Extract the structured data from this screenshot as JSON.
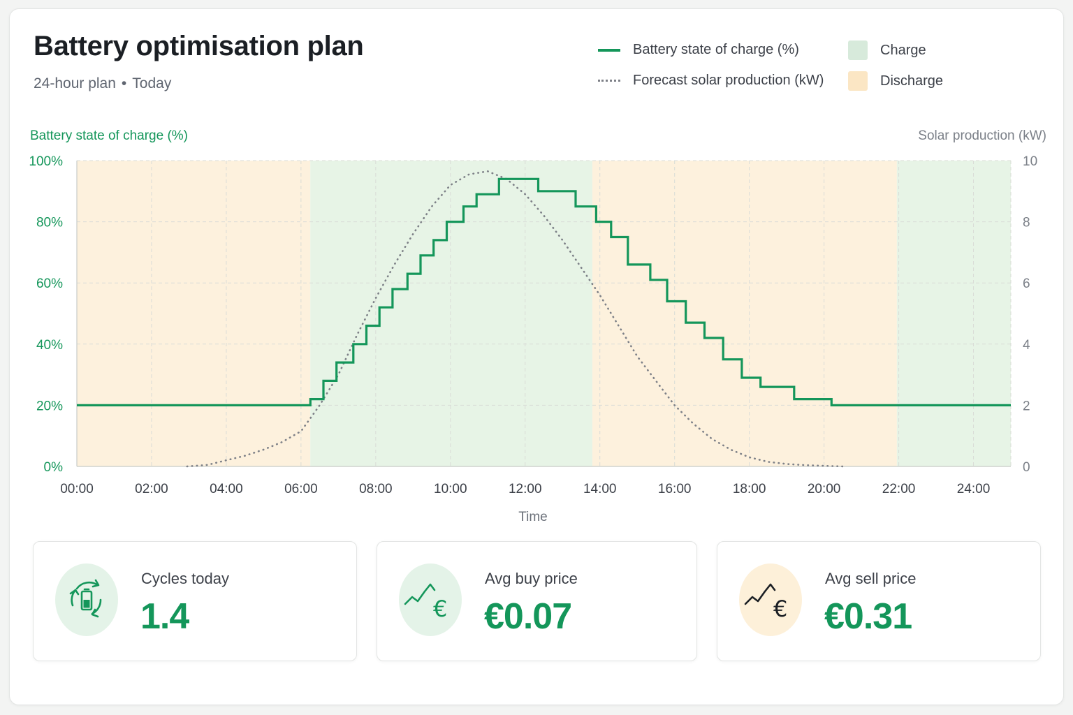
{
  "header": {
    "title": "Battery optimisation plan",
    "subtitle_period": "24-hour plan",
    "subtitle_day": "Today"
  },
  "legend": {
    "soc": "Battery state of charge (%)",
    "solar": "Forecast solar production (kW)",
    "charge": "Charge",
    "discharge": "Discharge"
  },
  "colors": {
    "accent": "#14965a",
    "solar_line": "#7d8087",
    "charge_fill": "#e7f4e6",
    "discharge_fill": "#fdf1dd",
    "charge_swatch": "#d7eadb",
    "discharge_swatch": "#fbe6c4"
  },
  "chart_data": {
    "type": "line",
    "ylabel_left": "Battery state of charge (%)",
    "ylabel_right": "Solar production (kW)",
    "xlabel": "Time",
    "x_ticks": [
      "00:00",
      "02:00",
      "04:00",
      "06:00",
      "08:00",
      "10:00",
      "12:00",
      "14:00",
      "16:00",
      "18:00",
      "20:00",
      "22:00",
      "24:00"
    ],
    "y_left_ticks": [
      "0%",
      "20%",
      "40%",
      "60%",
      "80%",
      "100%"
    ],
    "y_right_ticks": [
      "0",
      "2",
      "4",
      "6",
      "8",
      "10"
    ],
    "xlim": [
      0,
      25
    ],
    "ylim_left": [
      0,
      100
    ],
    "ylim_right": [
      0,
      10
    ],
    "grid": true,
    "legend_position": "top-right",
    "bands": [
      {
        "type": "discharge",
        "start": 0,
        "end": 6.25
      },
      {
        "type": "charge",
        "start": 6.25,
        "end": 13.8
      },
      {
        "type": "discharge",
        "start": 13.8,
        "end": 21.95
      },
      {
        "type": "charge",
        "start": 21.95,
        "end": 25
      }
    ],
    "series": [
      {
        "name": "Battery state of charge (%)",
        "axis": "left",
        "style": "step",
        "points": [
          [
            0,
            20
          ],
          [
            6.25,
            22
          ],
          [
            6.6,
            28
          ],
          [
            6.95,
            34
          ],
          [
            7.4,
            40
          ],
          [
            7.75,
            46
          ],
          [
            8.1,
            52
          ],
          [
            8.45,
            58
          ],
          [
            8.85,
            63
          ],
          [
            9.2,
            69
          ],
          [
            9.55,
            74
          ],
          [
            9.9,
            80
          ],
          [
            10.35,
            85
          ],
          [
            10.7,
            89
          ],
          [
            11.3,
            94
          ],
          [
            12.35,
            90
          ],
          [
            13.35,
            85
          ],
          [
            13.9,
            80
          ],
          [
            14.3,
            75
          ],
          [
            14.75,
            66
          ],
          [
            15.35,
            61
          ],
          [
            15.8,
            54
          ],
          [
            16.3,
            47
          ],
          [
            16.8,
            42
          ],
          [
            17.3,
            35
          ],
          [
            17.8,
            29
          ],
          [
            18.3,
            26
          ],
          [
            19.2,
            22
          ],
          [
            20.2,
            20
          ],
          [
            25,
            20
          ]
        ]
      },
      {
        "name": "Forecast solar production (kW)",
        "axis": "right",
        "style": "dotted",
        "points": [
          [
            2.95,
            0
          ],
          [
            3.5,
            0.05
          ],
          [
            4,
            0.2
          ],
          [
            4.5,
            0.35
          ],
          [
            5,
            0.55
          ],
          [
            5.5,
            0.8
          ],
          [
            6,
            1.15
          ],
          [
            6.5,
            2.0
          ],
          [
            7,
            3.0
          ],
          [
            7.5,
            4.3
          ],
          [
            8,
            5.5
          ],
          [
            8.5,
            6.6
          ],
          [
            9,
            7.6
          ],
          [
            9.5,
            8.5
          ],
          [
            10,
            9.2
          ],
          [
            10.5,
            9.55
          ],
          [
            11,
            9.65
          ],
          [
            11.5,
            9.4
          ],
          [
            12,
            8.9
          ],
          [
            12.5,
            8.2
          ],
          [
            13,
            7.4
          ],
          [
            13.5,
            6.5
          ],
          [
            14,
            5.6
          ],
          [
            14.5,
            4.6
          ],
          [
            15,
            3.6
          ],
          [
            15.5,
            2.8
          ],
          [
            16,
            2.0
          ],
          [
            16.5,
            1.4
          ],
          [
            17,
            0.9
          ],
          [
            17.5,
            0.55
          ],
          [
            18,
            0.3
          ],
          [
            18.5,
            0.15
          ],
          [
            19,
            0.08
          ],
          [
            19.5,
            0.04
          ],
          [
            20,
            0.02
          ],
          [
            20.5,
            0
          ]
        ]
      }
    ]
  },
  "kpis": [
    {
      "label": "Cycles today",
      "value": "1.4",
      "icon": "battery-cycle-icon"
    },
    {
      "label": "Avg buy price",
      "value": "€0.07",
      "icon": "trend-euro-icon"
    },
    {
      "label": "Avg sell price",
      "value": "€0.31",
      "icon": "trend-euro-icon"
    }
  ]
}
